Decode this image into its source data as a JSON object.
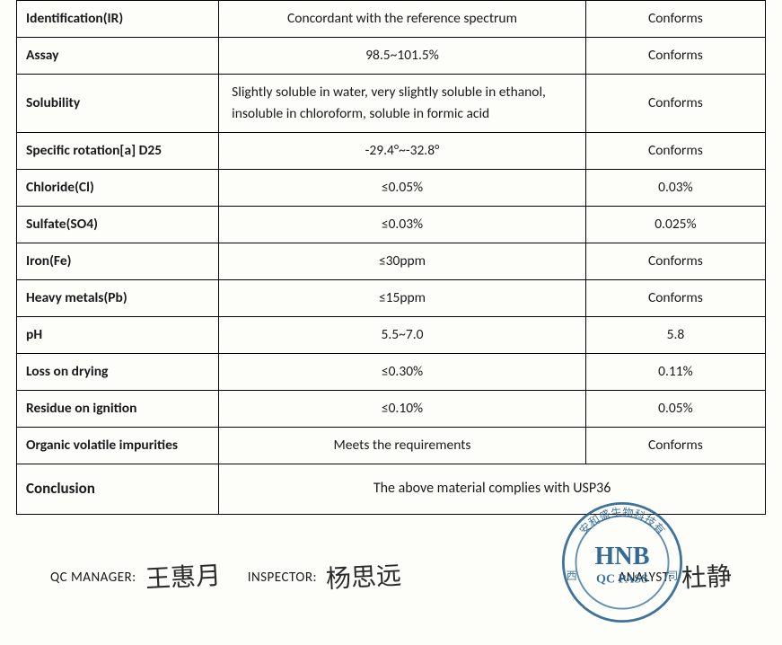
{
  "table": {
    "colors": {
      "border": "#000000",
      "text": "#1a1a1a",
      "background": "#fdfdfa"
    },
    "font_size_pt": 12,
    "rows": [
      {
        "param": "Identification(IR)",
        "spec": "Concordant with the reference spectrum",
        "result": "Conforms",
        "spec_align": "center"
      },
      {
        "param": "Assay",
        "spec": "98.5~101.5%",
        "result": "Conforms",
        "spec_align": "center"
      },
      {
        "param": "Solubility",
        "spec": "Slightly soluble in water, very slightly soluble in ethanol, insoluble in chloroform, soluble in formic acid",
        "result": "Conforms",
        "spec_align": "left"
      },
      {
        "param": "Specific rotation[a] D25",
        "spec": "-29.4°~-32.8°",
        "result": "Conforms",
        "spec_align": "center"
      },
      {
        "param": "Chloride(Cl)",
        "spec": "≤0.05%",
        "result": "0.03%",
        "spec_align": "center"
      },
      {
        "param": "Sulfate(SO4)",
        "spec": "≤0.03%",
        "result": "0.025%",
        "spec_align": "center"
      },
      {
        "param": "Iron(Fe)",
        "spec": "≤30ppm",
        "result": "Conforms",
        "spec_align": "center"
      },
      {
        "param": "Heavy metals(Pb)",
        "spec": "≤15ppm",
        "result": "Conforms",
        "spec_align": "center"
      },
      {
        "param": "pH",
        "spec": "5.5~7.0",
        "result": "5.8",
        "spec_align": "center"
      },
      {
        "param": "Loss on drying",
        "spec": "≤0.30%",
        "result": "0.11%",
        "spec_align": "center"
      },
      {
        "param": "Residue on ignition",
        "spec": "≤0.10%",
        "result": "0.05%",
        "spec_align": "center"
      },
      {
        "param": "Organic volatile impurities",
        "spec": "Meets the requirements",
        "result": "Conforms",
        "spec_align": "center"
      }
    ],
    "conclusion": {
      "label": "Conclusion",
      "text": "The above material complies with USP36"
    }
  },
  "signatures": {
    "qc_manager": {
      "label": "QC MANAGER:",
      "sign": "王惠月"
    },
    "inspector": {
      "label": "INSPECTOR:",
      "sign": "杨思远"
    },
    "analyst": {
      "label": "ANALYST:",
      "sign": "杜静"
    }
  },
  "stamp": {
    "text_top": "安和盛生物科技有",
    "text_main": "HNB",
    "text_sub": "QC PASS",
    "ink_color": "#1f5c8c",
    "ring_outer": "#1e5a88",
    "ring_inner": "#2a6a9a"
  }
}
